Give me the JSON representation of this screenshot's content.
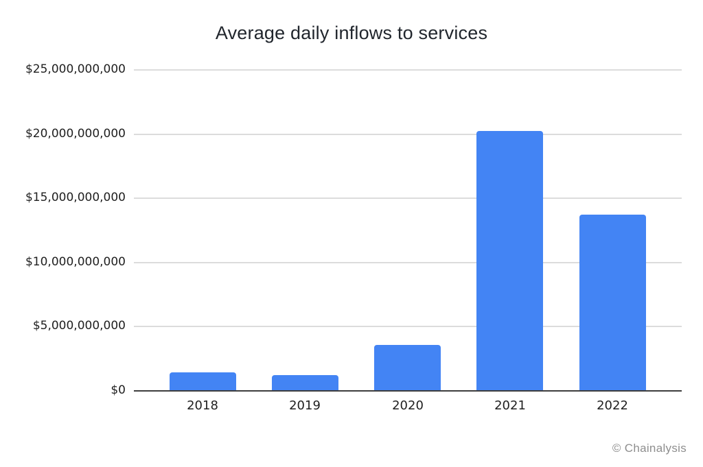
{
  "page": {
    "background": "#ffffff"
  },
  "watermark": {
    "label": "© Chainalysis",
    "color": "#8e8e8e"
  },
  "chart_data": {
    "type": "bar",
    "title": "Average daily inflows to services",
    "xlabel": "",
    "ylabel": "",
    "categories": [
      "2018",
      "2019",
      "2020",
      "2021",
      "2022"
    ],
    "values": [
      1400000000,
      1200000000,
      3500000000,
      20200000000,
      13700000000
    ],
    "ylim": [
      0,
      25000000000
    ],
    "y_ticks": [
      {
        "value": 0,
        "label": "$0"
      },
      {
        "value": 5000000000,
        "label": "$5,000,000,000"
      },
      {
        "value": 10000000000,
        "label": "$10,000,000,000"
      },
      {
        "value": 15000000000,
        "label": "$15,000,000,000"
      },
      {
        "value": 20000000000,
        "label": "$20,000,000,000"
      },
      {
        "value": 25000000000,
        "label": "$25,000,000,000"
      }
    ],
    "grid": "horizontal",
    "legend": "none",
    "colors": {
      "bar": "#4384f4",
      "gridline": "#dcdcdc",
      "axis_line": "#3d3d3d",
      "title": "#21262d",
      "tick_label": "#1f1f1f"
    }
  }
}
